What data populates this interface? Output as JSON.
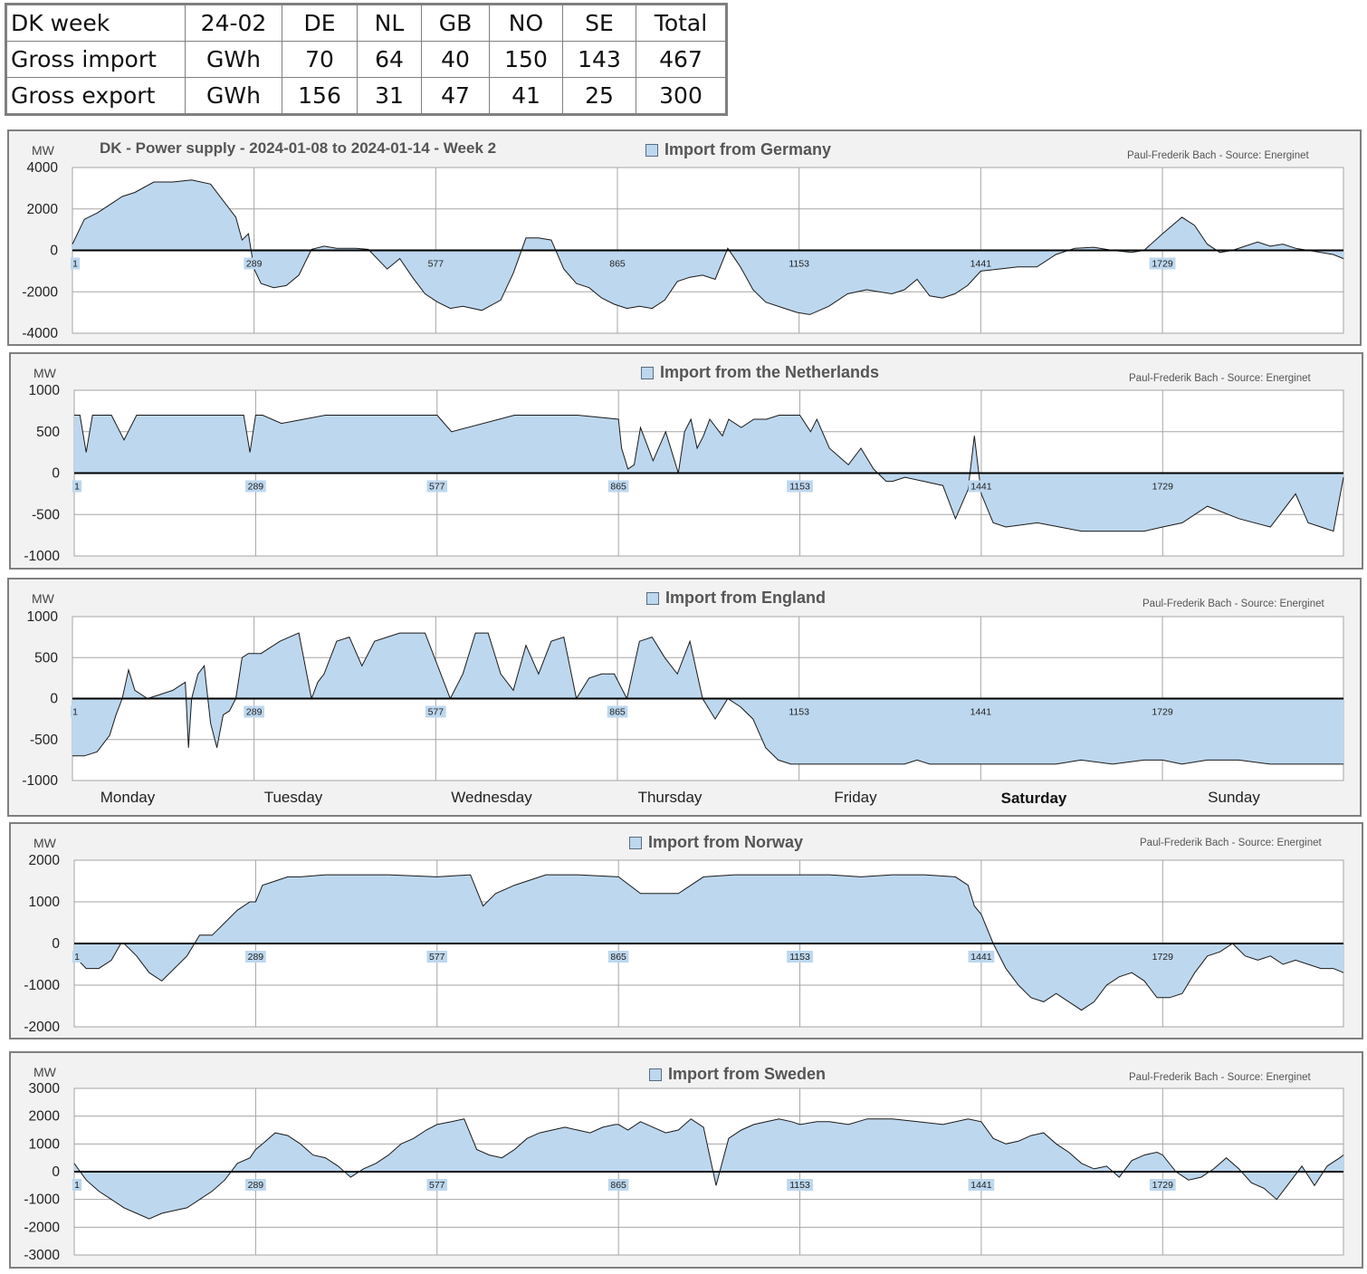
{
  "summary_table": {
    "header": [
      "DK week",
      "24-02",
      "DE",
      "NL",
      "GB",
      "NO",
      "SE",
      "Total"
    ],
    "rows": [
      [
        "Gross import",
        "GWh",
        "70",
        "64",
        "40",
        "150",
        "143",
        "467"
      ],
      [
        "Gross export",
        "GWh",
        "156",
        "31",
        "47",
        "41",
        "25",
        "300"
      ]
    ]
  },
  "main_title": "DK - Power supply  - 2024-01-08 to 2024-01-14 - Week 2",
  "credit": "Paul-Frederik Bach - Source: Energinet",
  "unit": "MW",
  "fill_color": "#bdd7ee",
  "line_color": "#1a1a1a",
  "x_tick_labels": [
    "1",
    "289",
    "577",
    "865",
    "1153",
    "1441",
    "1729"
  ],
  "day_labels": [
    "Monday",
    "Tuesday",
    "Wednesday",
    "Thursday",
    "Friday",
    "Saturday",
    "Sunday"
  ],
  "chart_data": [
    {
      "type": "area",
      "legend": "Import from Germany",
      "x_range": [
        1,
        2016
      ],
      "x_ticks": [
        1,
        289,
        577,
        865,
        1153,
        1441,
        1729
      ],
      "ylim": [
        -4000,
        4000
      ],
      "y_ticks": [
        4000,
        2000,
        0,
        -2000,
        -4000
      ],
      "x": [
        1,
        20,
        40,
        60,
        80,
        100,
        130,
        160,
        190,
        220,
        240,
        260,
        270,
        280,
        289,
        300,
        320,
        340,
        360,
        380,
        400,
        420,
        450,
        470,
        500,
        520,
        540,
        560,
        580,
        600,
        620,
        650,
        680,
        700,
        720,
        740,
        760,
        780,
        800,
        820,
        840,
        860,
        880,
        900,
        920,
        940,
        960,
        980,
        1000,
        1020,
        1040,
        1060,
        1080,
        1100,
        1130,
        1150,
        1170,
        1200,
        1230,
        1260,
        1300,
        1320,
        1340,
        1360,
        1380,
        1400,
        1420,
        1441,
        1470,
        1500,
        1530,
        1560,
        1590,
        1620,
        1650,
        1680,
        1700,
        1729,
        1760,
        1780,
        1800,
        1820,
        1840,
        1860,
        1880,
        1900,
        1920,
        1940,
        1960,
        1980,
        2000,
        2016
      ],
      "y": [
        300,
        1500,
        1800,
        2200,
        2600,
        2800,
        3300,
        3300,
        3400,
        3200,
        2400,
        1600,
        500,
        800,
        -900,
        -1600,
        -1800,
        -1700,
        -1200,
        50,
        200,
        100,
        100,
        50,
        -900,
        -400,
        -1300,
        -2100,
        -2500,
        -2800,
        -2700,
        -2900,
        -2400,
        -1100,
        600,
        600,
        500,
        -900,
        -1600,
        -1800,
        -2300,
        -2600,
        -2800,
        -2700,
        -2800,
        -2400,
        -1500,
        -1300,
        -1200,
        -1400,
        100,
        -800,
        -1900,
        -2500,
        -2800,
        -3000,
        -3100,
        -2700,
        -2100,
        -1900,
        -2100,
        -1900,
        -1400,
        -2200,
        -2300,
        -2100,
        -1700,
        -1000,
        -900,
        -800,
        -800,
        -200,
        100,
        150,
        0,
        -100,
        0,
        800,
        1600,
        1200,
        300,
        -100,
        0,
        200,
        400,
        200,
        300,
        100,
        0,
        -100,
        -200,
        -400
      ]
    },
    {
      "type": "area",
      "legend": "Import from the Netherlands",
      "x_range": [
        1,
        2016
      ],
      "x_ticks": [
        1,
        289,
        577,
        865,
        1153,
        1441,
        1729
      ],
      "ylim": [
        -1000,
        1000
      ],
      "y_ticks": [
        1000,
        500,
        0,
        -500,
        -1000
      ],
      "x": [
        1,
        10,
        20,
        30,
        40,
        60,
        80,
        100,
        140,
        200,
        270,
        280,
        289,
        300,
        330,
        400,
        577,
        600,
        700,
        800,
        865,
        870,
        880,
        890,
        900,
        920,
        940,
        960,
        970,
        980,
        990,
        1000,
        1010,
        1030,
        1040,
        1060,
        1080,
        1100,
        1120,
        1153,
        1170,
        1180,
        1200,
        1230,
        1250,
        1270,
        1290,
        1300,
        1320,
        1350,
        1380,
        1400,
        1420,
        1430,
        1441,
        1460,
        1480,
        1530,
        1600,
        1700,
        1729,
        1760,
        1800,
        1850,
        1900,
        1940,
        1960,
        1980,
        2000,
        2016
      ],
      "y": [
        700,
        700,
        250,
        700,
        700,
        700,
        400,
        700,
        700,
        700,
        700,
        250,
        700,
        700,
        600,
        700,
        700,
        500,
        700,
        700,
        650,
        300,
        50,
        100,
        550,
        150,
        500,
        0,
        500,
        650,
        300,
        450,
        650,
        450,
        650,
        550,
        650,
        650,
        700,
        700,
        500,
        650,
        300,
        100,
        300,
        50,
        -100,
        -100,
        -50,
        -100,
        -150,
        -550,
        -200,
        450,
        -250,
        -600,
        -650,
        -600,
        -700,
        -700,
        -650,
        -600,
        -400,
        -550,
        -650,
        -250,
        -600,
        -650,
        -700,
        -50
      ]
    },
    {
      "type": "area",
      "legend": "Import from England",
      "x_range": [
        1,
        2016
      ],
      "x_ticks": [
        1,
        289,
        577,
        865,
        1153,
        1441,
        1729
      ],
      "ylim": [
        -1000,
        1000
      ],
      "y_ticks": [
        1000,
        500,
        0,
        -500,
        -1000
      ],
      "x": [
        1,
        20,
        40,
        60,
        70,
        80,
        90,
        100,
        120,
        140,
        160,
        180,
        185,
        190,
        200,
        210,
        220,
        230,
        240,
        250,
        260,
        270,
        280,
        289,
        300,
        330,
        360,
        380,
        390,
        400,
        420,
        440,
        460,
        480,
        500,
        520,
        560,
        600,
        620,
        640,
        660,
        680,
        700,
        720,
        740,
        760,
        780,
        800,
        820,
        840,
        860,
        880,
        900,
        920,
        940,
        960,
        980,
        1000,
        1020,
        1040,
        1060,
        1080,
        1100,
        1120,
        1140,
        1153,
        1170,
        1190,
        1210,
        1230,
        1250,
        1270,
        1290,
        1300,
        1320,
        1340,
        1360,
        1400,
        1441,
        1480,
        1520,
        1560,
        1600,
        1650,
        1700,
        1729,
        1760,
        1800,
        1850,
        1900,
        1950,
        2000,
        2016
      ],
      "y": [
        -700,
        -700,
        -650,
        -450,
        -200,
        0,
        350,
        100,
        0,
        50,
        100,
        200,
        -600,
        0,
        300,
        400,
        -300,
        -600,
        -200,
        -150,
        0,
        500,
        550,
        550,
        550,
        700,
        800,
        0,
        200,
        300,
        700,
        750,
        400,
        700,
        750,
        800,
        800,
        0,
        300,
        800,
        800,
        300,
        100,
        650,
        300,
        700,
        750,
        0,
        250,
        300,
        300,
        0,
        700,
        750,
        500,
        300,
        700,
        0,
        -250,
        0,
        -100,
        -250,
        -600,
        -750,
        -800,
        -800,
        -800,
        -800,
        -800,
        -800,
        -800,
        -800,
        -800,
        -800,
        -800,
        -750,
        -800,
        -800,
        -800,
        -800,
        -800,
        -800,
        -750,
        -800,
        -750,
        -750,
        -800,
        -750,
        -750,
        -800,
        -800,
        -800,
        -800
      ]
    },
    {
      "type": "area",
      "legend": "Import from Norway",
      "x_range": [
        1,
        2016
      ],
      "x_ticks": [
        1,
        289,
        577,
        865,
        1153,
        1441,
        1729
      ],
      "ylim": [
        -2000,
        2000
      ],
      "y_ticks": [
        2000,
        1000,
        0,
        -1000,
        -2000
      ],
      "x": [
        1,
        20,
        40,
        60,
        75,
        80,
        100,
        120,
        140,
        160,
        180,
        200,
        220,
        240,
        260,
        280,
        289,
        300,
        320,
        340,
        360,
        400,
        450,
        500,
        577,
        630,
        650,
        670,
        700,
        750,
        800,
        865,
        900,
        960,
        1000,
        1050,
        1100,
        1153,
        1200,
        1250,
        1300,
        1350,
        1400,
        1420,
        1430,
        1441,
        1460,
        1480,
        1500,
        1520,
        1540,
        1560,
        1580,
        1600,
        1620,
        1640,
        1660,
        1680,
        1700,
        1720,
        1740,
        1760,
        1780,
        1800,
        1820,
        1840,
        1860,
        1880,
        1900,
        1920,
        1940,
        1960,
        1980,
        2000,
        2016
      ],
      "y": [
        -300,
        -600,
        -600,
        -400,
        0,
        0,
        -300,
        -700,
        -900,
        -600,
        -300,
        200,
        200,
        500,
        800,
        1000,
        1000,
        1400,
        1500,
        1600,
        1600,
        1650,
        1650,
        1650,
        1600,
        1650,
        900,
        1200,
        1400,
        1650,
        1650,
        1600,
        1200,
        1200,
        1600,
        1650,
        1650,
        1650,
        1650,
        1600,
        1650,
        1650,
        1600,
        1400,
        900,
        700,
        0,
        -600,
        -1000,
        -1300,
        -1400,
        -1200,
        -1400,
        -1600,
        -1400,
        -1000,
        -800,
        -700,
        -900,
        -1300,
        -1300,
        -1200,
        -700,
        -300,
        -200,
        0,
        -300,
        -400,
        -300,
        -500,
        -400,
        -500,
        -600,
        -600,
        -700
      ]
    },
    {
      "type": "area",
      "legend": "Import from Sweden",
      "x_range": [
        1,
        2016
      ],
      "x_ticks": [
        1,
        289,
        577,
        865,
        1153,
        1441,
        1729
      ],
      "ylim": [
        -3000,
        3000
      ],
      "y_ticks": [
        3000,
        2000,
        1000,
        0,
        -1000,
        -2000,
        -3000
      ],
      "x": [
        1,
        20,
        40,
        60,
        80,
        100,
        120,
        140,
        160,
        180,
        200,
        220,
        240,
        260,
        280,
        289,
        300,
        320,
        340,
        360,
        380,
        400,
        420,
        440,
        460,
        480,
        500,
        520,
        540,
        560,
        577,
        600,
        620,
        640,
        660,
        680,
        700,
        720,
        740,
        760,
        780,
        800,
        820,
        840,
        860,
        865,
        880,
        900,
        920,
        940,
        960,
        980,
        1000,
        1020,
        1040,
        1060,
        1080,
        1100,
        1120,
        1140,
        1153,
        1180,
        1200,
        1230,
        1260,
        1300,
        1340,
        1380,
        1420,
        1441,
        1460,
        1480,
        1500,
        1520,
        1540,
        1560,
        1580,
        1600,
        1620,
        1640,
        1660,
        1680,
        1700,
        1720,
        1729,
        1750,
        1770,
        1790,
        1810,
        1830,
        1850,
        1870,
        1890,
        1910,
        1930,
        1950,
        1970,
        1990,
        2010,
        2016
      ],
      "y": [
        300,
        -300,
        -700,
        -1000,
        -1300,
        -1500,
        -1700,
        -1500,
        -1400,
        -1300,
        -1000,
        -700,
        -300,
        300,
        500,
        800,
        1000,
        1400,
        1300,
        1000,
        600,
        500,
        200,
        -200,
        100,
        300,
        600,
        1000,
        1200,
        1500,
        1700,
        1800,
        1900,
        800,
        600,
        500,
        800,
        1200,
        1400,
        1500,
        1600,
        1500,
        1400,
        1600,
        1700,
        1700,
        1500,
        1800,
        1600,
        1400,
        1500,
        1900,
        1600,
        -500,
        1200,
        1500,
        1700,
        1800,
        1900,
        1800,
        1700,
        1800,
        1800,
        1700,
        1900,
        1900,
        1800,
        1700,
        1900,
        1800,
        1200,
        1000,
        1100,
        1300,
        1400,
        1000,
        700,
        300,
        100,
        200,
        -200,
        400,
        600,
        700,
        600,
        0,
        -300,
        -200,
        100,
        500,
        100,
        -400,
        -600,
        -1000,
        -400,
        200,
        -500,
        200,
        500,
        600
      ]
    }
  ]
}
